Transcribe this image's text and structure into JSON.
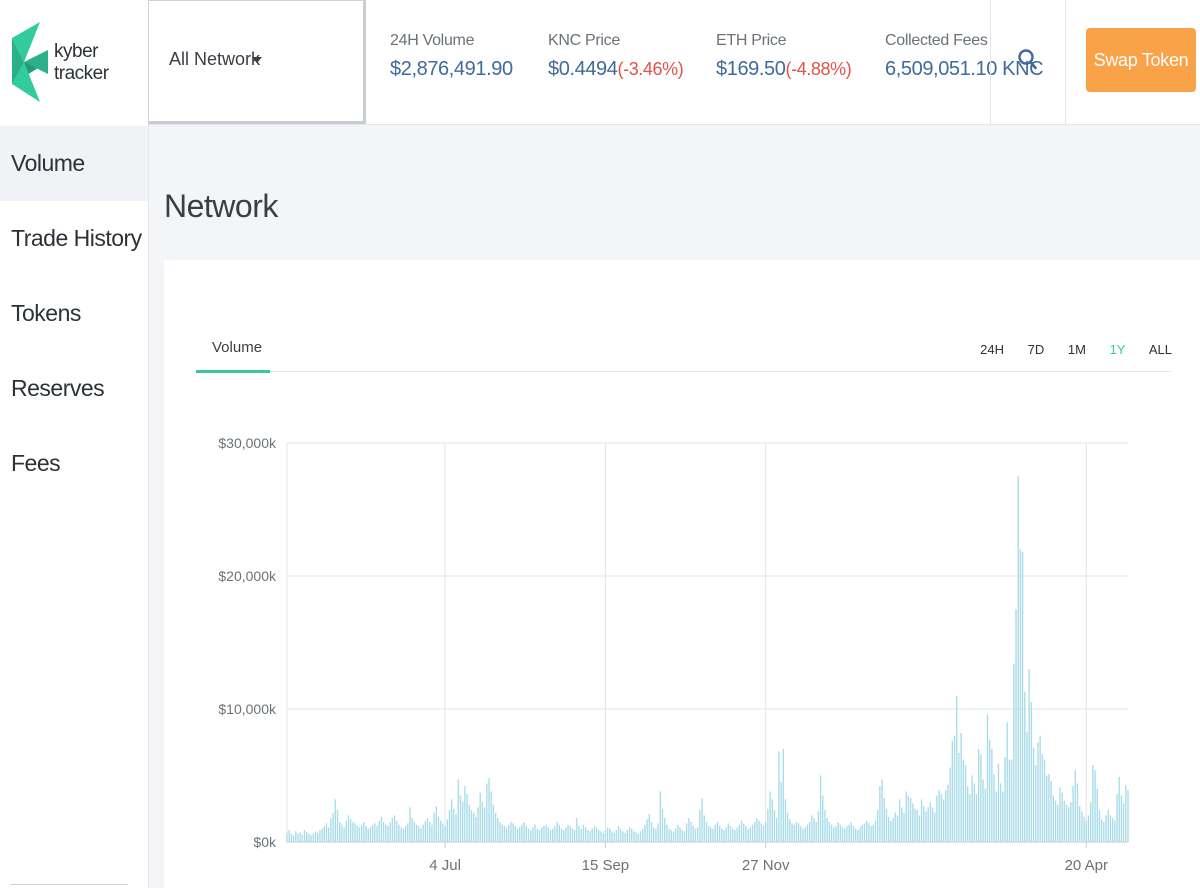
{
  "app": {
    "logo_line1": "kyber",
    "logo_line2": "tracker",
    "brand_color": "#31cb9e"
  },
  "sidebar": {
    "items": [
      {
        "label": "Volume",
        "active": true
      },
      {
        "label": "Trade History",
        "active": false
      },
      {
        "label": "Tokens",
        "active": false
      },
      {
        "label": "Reserves",
        "active": false
      },
      {
        "label": "Fees",
        "active": false
      }
    ]
  },
  "header": {
    "network_select": "All Network",
    "stats": {
      "volume_24h": {
        "label": "24H Volume",
        "value": "$2,876,491.90"
      },
      "knc_price": {
        "label": "KNC Price",
        "value": "$0.4494",
        "change": "(-3.46%)"
      },
      "eth_price": {
        "label": "ETH Price",
        "value": "$169.50",
        "change": "(-4.88%)"
      },
      "fees": {
        "label": "Collected Fees",
        "value": "6,509,051.10 KNC"
      }
    },
    "search_icon": "search-icon",
    "swap_label": "Swap Token",
    "swap_color": "#f9a247"
  },
  "page": {
    "title": "Network",
    "tab_label": "Volume",
    "ranges": [
      "24H",
      "7D",
      "1M",
      "1Y",
      "ALL"
    ],
    "active_range": "1Y"
  },
  "chart_data": {
    "type": "bar",
    "ylim": [
      0,
      30000
    ],
    "yticks": [
      "$30,000k",
      "$20,000k",
      "$10,000k",
      "$0k"
    ],
    "ytick_values": [
      30000,
      20000,
      10000,
      0
    ],
    "xticks": [
      "4 Jul",
      "15 Sep",
      "27 Nov",
      "20 Apr"
    ],
    "xtick_days": [
      72,
      145,
      218,
      364
    ],
    "bar_color": "#a9dbe9",
    "unit": "k USD, daily volume",
    "values": [
      700,
      900,
      600,
      500,
      800,
      650,
      700,
      550,
      900,
      750,
      600,
      500,
      650,
      800,
      700,
      900,
      1000,
      1200,
      1400,
      1100,
      1800,
      2200,
      3200,
      2400,
      1500,
      1300,
      1100,
      1600,
      2000,
      1700,
      1500,
      1400,
      1200,
      1100,
      1300,
      1500,
      1200,
      1000,
      1100,
      1300,
      1400,
      1200,
      1600,
      1900,
      1500,
      1300,
      1200,
      1500,
      1800,
      2000,
      1600,
      1300,
      1100,
      1000,
      1200,
      1400,
      2600,
      1800,
      1500,
      1300,
      1200,
      1000,
      1300,
      1600,
      1800,
      1500,
      1300,
      2200,
      2700,
      1900,
      1600,
      1400,
      1200,
      1700,
      2400,
      3200,
      2500,
      2100,
      4700,
      3500,
      3000,
      4200,
      3600,
      2800,
      2400,
      2200,
      1900,
      2600,
      3700,
      3000,
      2600,
      4400,
      4800,
      3800,
      2800,
      2200,
      1800,
      1500,
      1300,
      1200,
      1100,
      1300,
      1500,
      1400,
      1200,
      1000,
      1100,
      1300,
      1500,
      1200,
      1000,
      900,
      1100,
      1300,
      1000,
      900,
      1100,
      1200,
      1300,
      1100,
      900,
      1000,
      1200,
      1500,
      1300,
      1000,
      900,
      1100,
      1300,
      1200,
      1000,
      900,
      1800,
      1200,
      1000,
      1300,
      1100,
      900,
      800,
      1000,
      1200,
      1100,
      900,
      800,
      700,
      900,
      1100,
      1000,
      800,
      700,
      900,
      1200,
      1000,
      800,
      700,
      900,
      1100,
      1000,
      800,
      700,
      600,
      800,
      1000,
      1300,
      1700,
      2100,
      1500,
      1100,
      1000,
      1400,
      3800,
      2500,
      1800,
      1300,
      1000,
      900,
      800,
      1000,
      1300,
      1100,
      900,
      800,
      1400,
      1800,
      1500,
      1200,
      1000,
      1100,
      2400,
      3300,
      2000,
      1500,
      1200,
      1100,
      1000,
      1300,
      1500,
      1200,
      1000,
      900,
      1100,
      1400,
      1200,
      1000,
      900,
      1100,
      1300,
      1600,
      1400,
      1200,
      1000,
      1100,
      1300,
      1500,
      1800,
      1600,
      1400,
      1200,
      1500,
      2500,
      3800,
      3200,
      2400,
      1800,
      6800,
      4500,
      7000,
      3200,
      2200,
      1700,
      1400,
      1300,
      1500,
      1400,
      1200,
      1000,
      1100,
      1300,
      1500,
      2000,
      1800,
      1500,
      2300,
      5000,
      3500,
      2400,
      1800,
      1500,
      1300,
      1100,
      1200,
      1500,
      1300,
      1100,
      1000,
      1200,
      1300,
      1500,
      1200,
      1000,
      900,
      1100,
      1300,
      1400,
      1600,
      1400,
      1200,
      1300,
      1600,
      2400,
      4200,
      4700,
      3300,
      2500,
      1900,
      1600,
      1800,
      2200,
      2000,
      3200,
      2600,
      2200,
      3800,
      3500,
      3300,
      2900,
      2500,
      2400,
      2000,
      3200,
      2700,
      2300,
      2600,
      3000,
      2600,
      2200,
      3500,
      3900,
      3600,
      3200,
      3900,
      4300,
      5600,
      7600,
      8000,
      11000,
      6700,
      8200,
      6200,
      5800,
      4200,
      3600,
      5000,
      4400,
      3600,
      7000,
      6600,
      4700,
      4000,
      9600,
      7700,
      7000,
      5100,
      3800,
      5900,
      4400,
      3800,
      6400,
      9000,
      6200,
      6200,
      13400,
      17500,
      27500,
      22000,
      21800,
      11300,
      8300,
      13000,
      10500,
      7100,
      5800,
      7500,
      8000,
      6600,
      6200,
      5000,
      5100,
      4600,
      3500,
      3100,
      2800,
      4100,
      3700,
      3100,
      2800,
      2600,
      3000,
      4200,
      5400,
      4400,
      2700,
      2300,
      1900,
      1600,
      2000,
      3000,
      5800,
      5400,
      4000,
      2400,
      1700,
      1500,
      2000,
      2400,
      2000,
      1800,
      1600,
      3600,
      4900,
      3500,
      2900,
      4300,
      3900
    ]
  }
}
